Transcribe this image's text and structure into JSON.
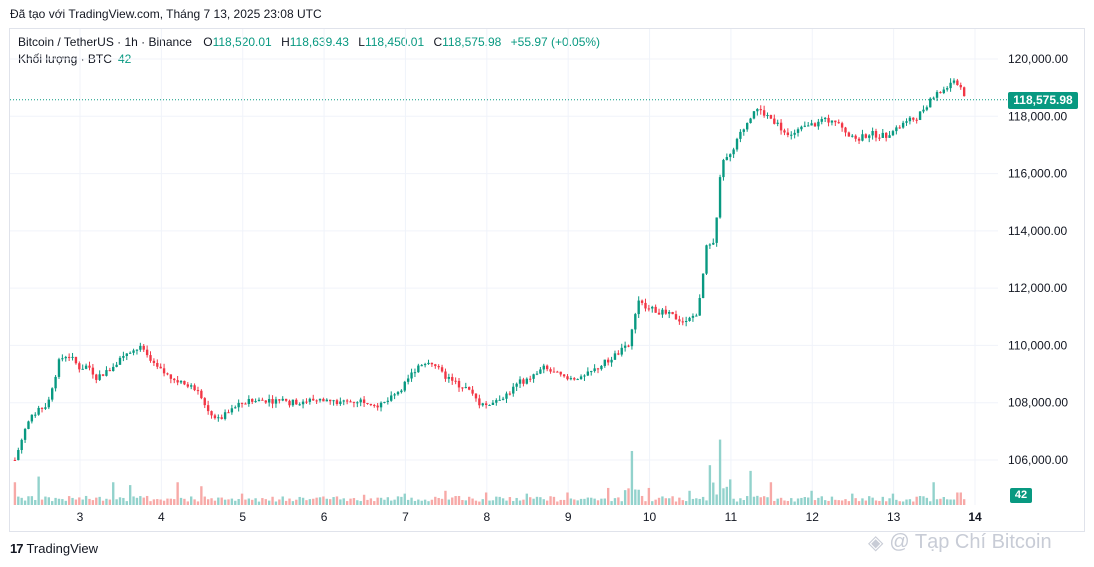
{
  "caption": "Đã tạo với TradingView.com, Tháng 7 13, 2025 23:08 UTC",
  "legend": {
    "symbol": "Bitcoin / TetherUS · 1h · Binance",
    "open_label": "O",
    "open": "118,520.01",
    "high_label": "H",
    "high": "118,639.43",
    "low_label": "L",
    "low": "118,450.01",
    "close_label": "C",
    "close": "118,575.98",
    "change": "+55.97 (+0.05%)"
  },
  "volume_legend": {
    "label": "Khối lượng · BTC",
    "value": "42"
  },
  "price_badge": "118,575.98",
  "volume_badge": "42",
  "brand": {
    "logo": "17",
    "name": "TradingView"
  },
  "watermark": "@ Tạp Chí Bitcoin",
  "colors": {
    "up": "#089981",
    "down": "#f23645",
    "up_vol": "#92d2cc",
    "down_vol": "#f7a9a7",
    "grid": "#f0f3fa"
  },
  "chart_data": {
    "type": "candlestick",
    "title": "Bitcoin / TetherUS · 1h · Binance",
    "y_ticks": [
      "120,000.00",
      "118,000.00",
      "116,000.00",
      "114,000.00",
      "112,000.00",
      "110,000.00",
      "108,000.00",
      "106,000.00"
    ],
    "y_tick_values": [
      120000,
      118000,
      116000,
      114000,
      112000,
      110000,
      108000,
      106000
    ],
    "ylim": [
      105500,
      120500
    ],
    "x_ticks": [
      "3",
      "4",
      "5",
      "6",
      "7",
      "8",
      "9",
      "10",
      "11",
      "12",
      "13",
      "14"
    ],
    "x_tick_values": [
      3,
      4,
      5,
      6,
      7,
      8,
      9,
      10,
      11,
      12,
      13,
      14
    ],
    "xlim": [
      2.15,
      14.5
    ],
    "last_price": 118575.98,
    "grid": true,
    "close_path": [
      [
        2.2,
        106000
      ],
      [
        2.35,
        107300
      ],
      [
        2.45,
        107600
      ],
      [
        2.6,
        108000
      ],
      [
        2.75,
        109500
      ],
      [
        2.85,
        109700
      ],
      [
        3.0,
        109200
      ],
      [
        3.1,
        109300
      ],
      [
        3.2,
        108900
      ],
      [
        3.35,
        109100
      ],
      [
        3.5,
        109600
      ],
      [
        3.6,
        109800
      ],
      [
        3.75,
        109900
      ],
      [
        3.9,
        109300
      ],
      [
        4.1,
        108900
      ],
      [
        4.3,
        108600
      ],
      [
        4.45,
        108500
      ],
      [
        4.55,
        107800
      ],
      [
        4.7,
        107400
      ],
      [
        4.85,
        107700
      ],
      [
        5.0,
        108000
      ],
      [
        5.3,
        108100
      ],
      [
        5.6,
        108000
      ],
      [
        5.9,
        108100
      ],
      [
        6.2,
        108000
      ],
      [
        6.5,
        108100
      ],
      [
        6.7,
        107900
      ],
      [
        6.85,
        108200
      ],
      [
        7.0,
        108700
      ],
      [
        7.15,
        109300
      ],
      [
        7.3,
        109500
      ],
      [
        7.45,
        109000
      ],
      [
        7.6,
        108700
      ],
      [
        7.75,
        108500
      ],
      [
        7.9,
        108000
      ],
      [
        8.0,
        107900
      ],
      [
        8.1,
        108100
      ],
      [
        8.25,
        108300
      ],
      [
        8.4,
        108700
      ],
      [
        8.55,
        108900
      ],
      [
        8.7,
        109200
      ],
      [
        8.85,
        109000
      ],
      [
        9.0,
        108800
      ],
      [
        9.15,
        108800
      ],
      [
        9.3,
        109100
      ],
      [
        9.45,
        109400
      ],
      [
        9.6,
        109700
      ],
      [
        9.75,
        110000
      ],
      [
        9.85,
        111600
      ],
      [
        9.95,
        111300
      ],
      [
        10.1,
        111200
      ],
      [
        10.3,
        111000
      ],
      [
        10.45,
        110800
      ],
      [
        10.6,
        111200
      ],
      [
        10.7,
        113400
      ],
      [
        10.8,
        113600
      ],
      [
        10.88,
        116400
      ],
      [
        11.0,
        116600
      ],
      [
        11.1,
        117300
      ],
      [
        11.2,
        117800
      ],
      [
        11.3,
        118300
      ],
      [
        11.4,
        118100
      ],
      [
        11.55,
        117800
      ],
      [
        11.7,
        117300
      ],
      [
        11.9,
        117600
      ],
      [
        12.1,
        117800
      ],
      [
        12.25,
        117900
      ],
      [
        12.4,
        117500
      ],
      [
        12.55,
        117200
      ],
      [
        12.7,
        117400
      ],
      [
        12.9,
        117300
      ],
      [
        13.1,
        117700
      ],
      [
        13.3,
        118000
      ],
      [
        13.4,
        118400
      ],
      [
        13.55,
        118800
      ],
      [
        13.7,
        119100
      ],
      [
        13.8,
        119200
      ],
      [
        13.9,
        118576
      ]
    ],
    "volume_spikes": [
      [
        2.2,
        40
      ],
      [
        2.5,
        50
      ],
      [
        3.4,
        40
      ],
      [
        3.6,
        35
      ],
      [
        4.2,
        40
      ],
      [
        4.5,
        33
      ],
      [
        5.0,
        20
      ],
      [
        5.5,
        15
      ],
      [
        6.0,
        15
      ],
      [
        6.5,
        18
      ],
      [
        7.0,
        20
      ],
      [
        7.5,
        25
      ],
      [
        8.0,
        22
      ],
      [
        8.5,
        20
      ],
      [
        9.0,
        22
      ],
      [
        9.5,
        30
      ],
      [
        9.78,
        95
      ],
      [
        10.0,
        30
      ],
      [
        10.5,
        25
      ],
      [
        10.75,
        70
      ],
      [
        10.88,
        115
      ],
      [
        11.0,
        45
      ],
      [
        11.25,
        60
      ],
      [
        11.5,
        40
      ],
      [
        12.0,
        25
      ],
      [
        12.5,
        20
      ],
      [
        13.0,
        20
      ],
      [
        13.5,
        40
      ],
      [
        13.8,
        22
      ]
    ],
    "volume_max": 120
  }
}
